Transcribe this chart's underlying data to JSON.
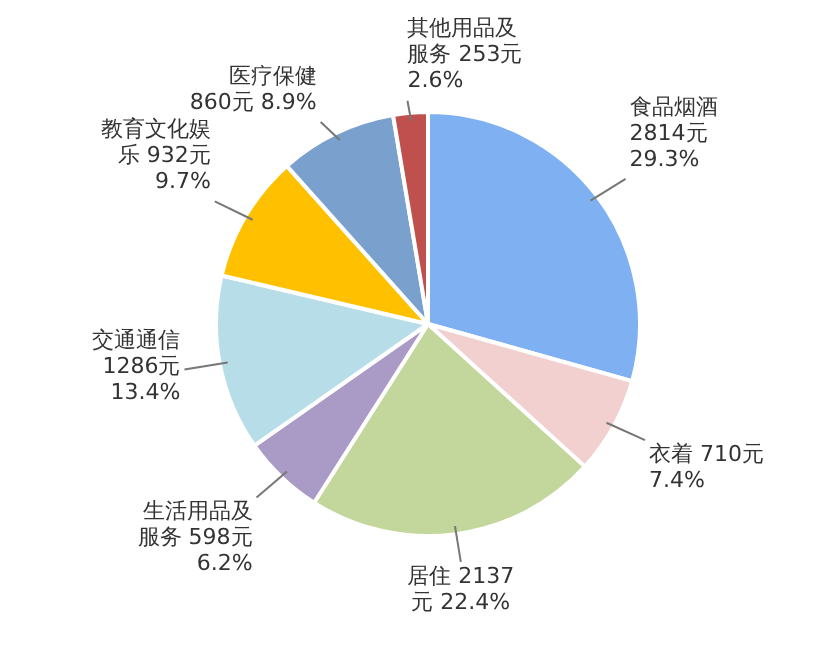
{
  "chart_data": {
    "type": "pie",
    "categories": [
      "食品烟酒",
      "衣着",
      "居住",
      "生活用品及服务",
      "交通通信",
      "教育文化娱乐",
      "医疗保健",
      "其他用品及服务"
    ],
    "values": [
      2814,
      710,
      2137,
      598,
      1286,
      932,
      860,
      253
    ],
    "colors": [
      "#7fb0f2",
      "#f2d0d0",
      "#c3d69b",
      "#a99ac6",
      "#b7dee8",
      "#ffc000",
      "#7aa0ce",
      "#c0504d"
    ],
    "value_labels": [
      "2814元 29.3%",
      "710元 7.4%",
      "2137元 22.4%",
      "598元 6.2%",
      "1286元 13.4%",
      "932元 9.7%",
      "860元 8.9%",
      "253元 2.6%"
    ],
    "legend": false
  }
}
